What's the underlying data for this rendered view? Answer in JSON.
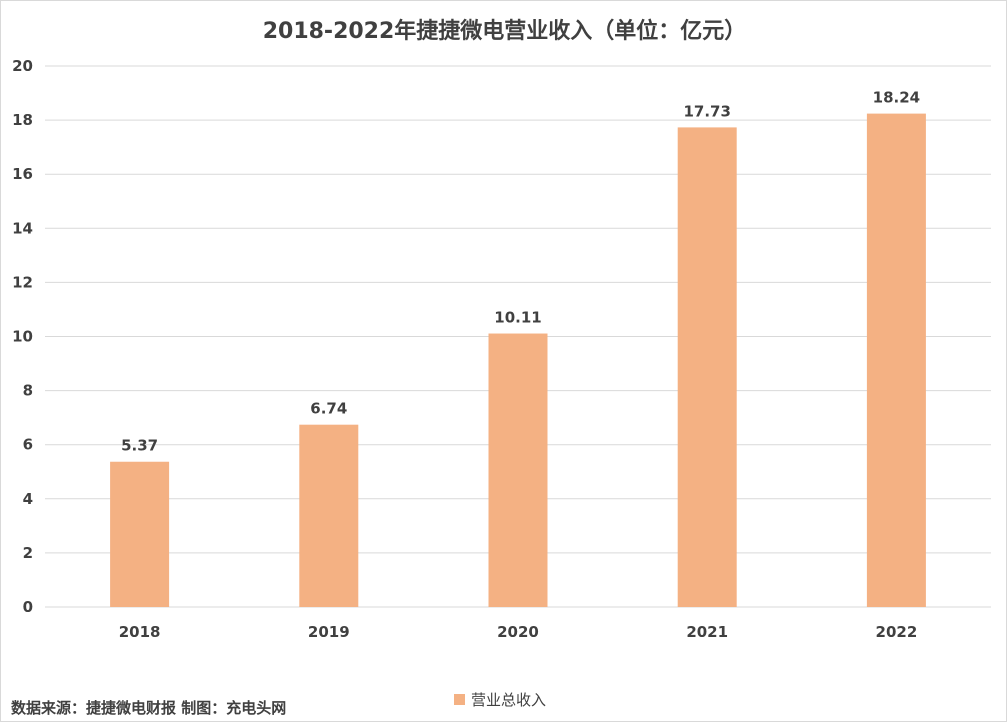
{
  "chart_data": {
    "type": "bar",
    "title": "2018-2022年捷捷微电营业收入（单位：亿元）",
    "categories": [
      "2018",
      "2019",
      "2020",
      "2021",
      "2022"
    ],
    "series": [
      {
        "name": "营业总收入",
        "values": [
          5.37,
          6.74,
          10.11,
          17.73,
          18.24
        ],
        "color": "#F4B183"
      }
    ],
    "data_labels": [
      "5.37",
      "6.74",
      "10.11",
      "17.73",
      "18.24"
    ],
    "y_ticks": [
      0,
      2,
      4,
      6,
      8,
      10,
      12,
      14,
      16,
      18,
      20
    ],
    "ylim": [
      0,
      20
    ],
    "grid": true,
    "legend_position": "bottom",
    "note": "数据来源：捷捷微电财报 制图：充电头网"
  },
  "colors": {
    "bar": "#F4B183",
    "grid": "#d9d9d9",
    "text": "#404040"
  }
}
